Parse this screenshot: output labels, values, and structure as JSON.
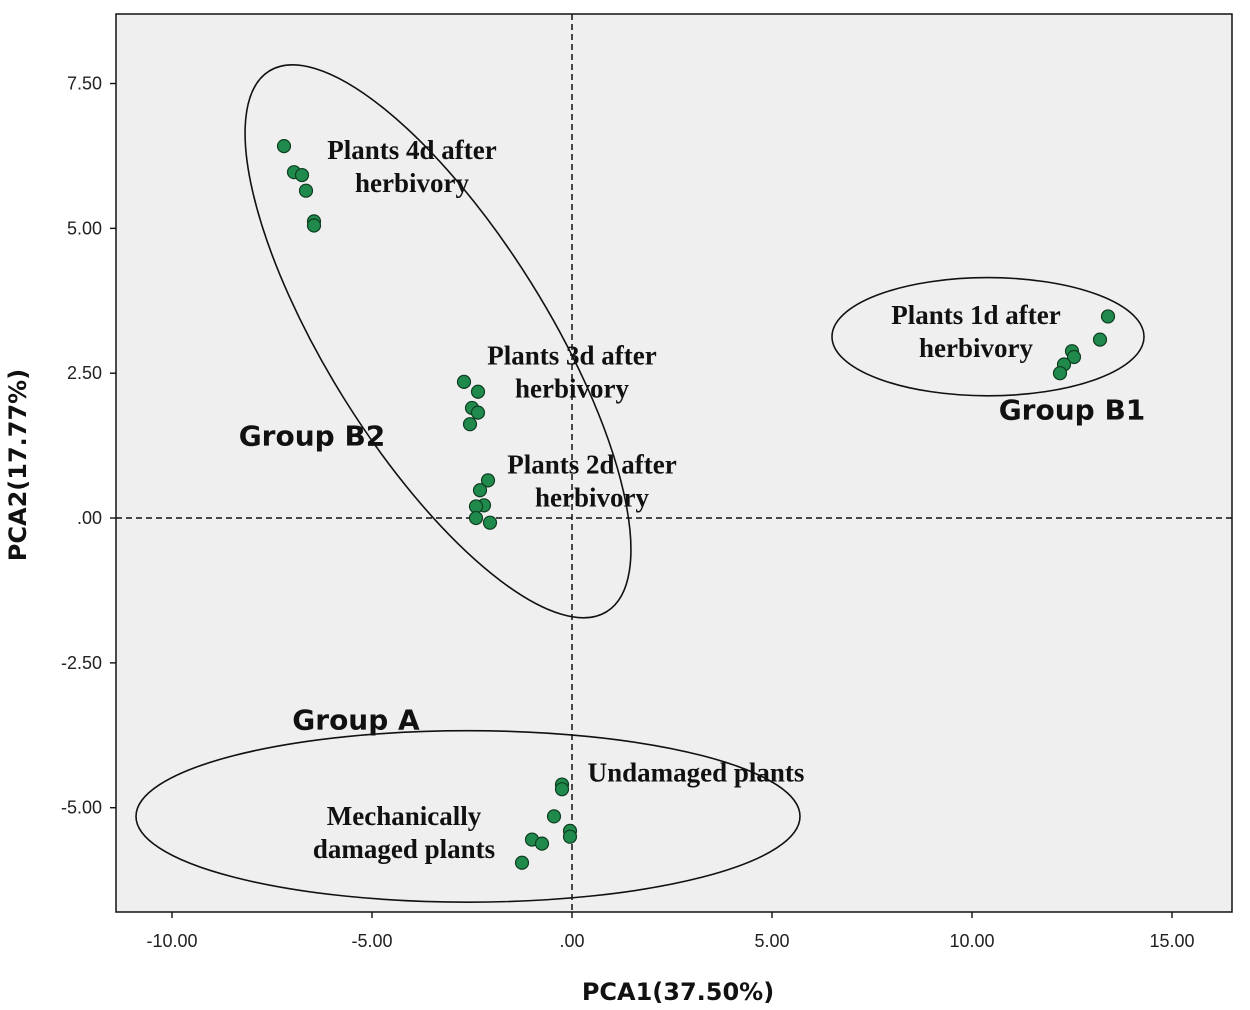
{
  "chart_data": {
    "type": "scatter",
    "title": "",
    "xlabel": "PCA1(37.50%)",
    "ylabel": "PCA2(17.77%)",
    "xlim": [
      -11.4,
      16.5
    ],
    "ylim": [
      -6.8,
      8.7
    ],
    "x_ticks": [
      -10,
      -5,
      0,
      5,
      10,
      15
    ],
    "x_tick_labels": [
      "-10.00",
      "-5.00",
      ".00",
      "5.00",
      "10.00",
      "15.00"
    ],
    "y_ticks": [
      7.5,
      5,
      2.5,
      0,
      -2.5,
      -5
    ],
    "y_tick_labels": [
      "7.50",
      "5.00",
      "2.50",
      ".00",
      "-2.50",
      "-5.00"
    ],
    "reference_lines": {
      "x": 0,
      "y": 0,
      "style": "dashed"
    },
    "grid": false,
    "point_color": "#1f8a4c",
    "point_edge_color": "#0e3d20",
    "plot_background": "#efefef",
    "points": [
      {
        "x": -7.2,
        "y": 6.42
      },
      {
        "x": -6.95,
        "y": 5.97
      },
      {
        "x": -6.75,
        "y": 5.92
      },
      {
        "x": -6.65,
        "y": 5.65
      },
      {
        "x": -6.45,
        "y": 5.12
      },
      {
        "x": -6.45,
        "y": 5.05
      },
      {
        "x": -2.7,
        "y": 2.35
      },
      {
        "x": -2.35,
        "y": 2.18
      },
      {
        "x": -2.5,
        "y": 1.9
      },
      {
        "x": -2.35,
        "y": 1.82
      },
      {
        "x": -2.55,
        "y": 1.62
      },
      {
        "x": -2.1,
        "y": 0.65
      },
      {
        "x": -2.3,
        "y": 0.48
      },
      {
        "x": -2.2,
        "y": 0.22
      },
      {
        "x": -2.4,
        "y": 0.2
      },
      {
        "x": -2.4,
        "y": 0.0
      },
      {
        "x": -2.05,
        "y": -0.08
      },
      {
        "x": 13.4,
        "y": 3.48
      },
      {
        "x": 13.2,
        "y": 3.08
      },
      {
        "x": 12.5,
        "y": 2.88
      },
      {
        "x": 12.55,
        "y": 2.78
      },
      {
        "x": 12.3,
        "y": 2.65
      },
      {
        "x": 12.2,
        "y": 2.5
      },
      {
        "x": -0.25,
        "y": -4.6
      },
      {
        "x": -0.25,
        "y": -4.68
      },
      {
        "x": -0.45,
        "y": -5.15
      },
      {
        "x": -0.05,
        "y": -5.4
      },
      {
        "x": -0.05,
        "y": -5.5
      },
      {
        "x": -1.0,
        "y": -5.55
      },
      {
        "x": -0.75,
        "y": -5.62
      },
      {
        "x": -1.25,
        "y": -5.95
      }
    ],
    "annotations": [
      {
        "lines": [
          "Plants 4d after",
          "herbivory"
        ],
        "x": -4.0,
        "y": 6.2
      },
      {
        "lines": [
          "Plants 3d after",
          "herbivory"
        ],
        "x": 0.0,
        "y": 2.65
      },
      {
        "lines": [
          "Plants 2d after",
          "herbivory"
        ],
        "x": 0.5,
        "y": 0.77
      },
      {
        "lines": [
          "Plants 1d after",
          "herbivory"
        ],
        "x": 10.1,
        "y": 3.35
      },
      {
        "lines": [
          "Undamaged plants"
        ],
        "x": 3.1,
        "y": -4.55
      },
      {
        "lines": [
          "Mechanically",
          "damaged plants"
        ],
        "x": -4.2,
        "y": -5.3
      }
    ],
    "groups": [
      {
        "label": "Group B2",
        "x": -6.5,
        "y": 1.25
      },
      {
        "label": "Group B1",
        "x": 12.5,
        "y": 1.7
      },
      {
        "label": "Group A",
        "x": -5.4,
        "y": -3.65
      }
    ],
    "ellipses": [
      {
        "cx": -3.35,
        "cy": 3.05,
        "rx": 2.75,
        "ry": 5.5,
        "rotate_deg": -32
      },
      {
        "cx": 10.4,
        "cy": 3.13,
        "rx": 3.9,
        "ry": 1.02,
        "rotate_deg": 0
      },
      {
        "cx": -2.6,
        "cy": -5.15,
        "rx": 8.3,
        "ry": 1.48,
        "rotate_deg": 0
      }
    ]
  }
}
